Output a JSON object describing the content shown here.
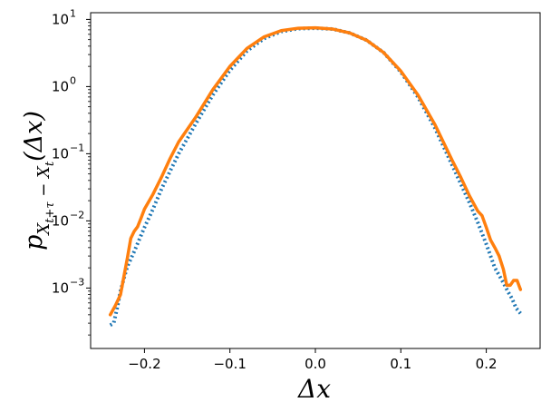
{
  "chart_data": {
    "type": "line",
    "xlabel": "Δx",
    "ylabel": "p_{X_{t+τ} − X_t}(Δx)",
    "yscale": "log",
    "xlim": [
      -0.263,
      0.263
    ],
    "ylim_log10": [
      -3.9,
      1.1
    ],
    "grid": false,
    "x_ticks": [
      {
        "value": -0.2,
        "label": "−0.2"
      },
      {
        "value": -0.1,
        "label": "−0.1"
      },
      {
        "value": 0.0,
        "label": "0.0"
      },
      {
        "value": 0.1,
        "label": "0.1"
      },
      {
        "value": 0.2,
        "label": "0.2"
      }
    ],
    "y_ticks": [
      {
        "value": 0.001,
        "base": "10",
        "exp": "−3"
      },
      {
        "value": 0.01,
        "base": "10",
        "exp": "−2"
      },
      {
        "value": 0.1,
        "base": "10",
        "exp": "−1"
      },
      {
        "value": 1,
        "base": "10",
        "exp": "0"
      },
      {
        "value": 10,
        "base": "10",
        "exp": "1"
      }
    ],
    "series": [
      {
        "color": "#1f77b4",
        "style": "dotted",
        "x": [
          -0.24,
          -0.236,
          -0.232,
          -0.228,
          -0.224,
          -0.22,
          -0.216,
          -0.212,
          -0.2,
          -0.19,
          -0.18,
          -0.17,
          -0.16,
          -0.14,
          -0.12,
          -0.1,
          -0.08,
          -0.06,
          -0.04,
          -0.02,
          0.0,
          0.02,
          0.04,
          0.06,
          0.08,
          0.1,
          0.12,
          0.14,
          0.16,
          0.17,
          0.18,
          0.19,
          0.2,
          0.21,
          0.22,
          0.225,
          0.23,
          0.235,
          0.24
        ],
        "y": [
          0.00028,
          0.0003,
          0.0005,
          0.0009,
          0.0014,
          0.0021,
          0.0027,
          0.0035,
          0.008,
          0.015,
          0.03,
          0.055,
          0.1,
          0.28,
          0.75,
          1.75,
          3.4,
          5.2,
          6.6,
          7.3,
          7.4,
          7.2,
          6.3,
          4.9,
          3.2,
          1.65,
          0.7,
          0.24,
          0.068,
          0.036,
          0.019,
          0.0095,
          0.0045,
          0.002,
          0.0012,
          0.0009,
          0.0007,
          0.0005,
          0.00042
        ]
      },
      {
        "color": "#ff7f0e",
        "style": "solid",
        "x": [
          -0.24,
          -0.234,
          -0.228,
          -0.224,
          -0.22,
          -0.216,
          -0.212,
          -0.208,
          -0.204,
          -0.2,
          -0.19,
          -0.18,
          -0.17,
          -0.16,
          -0.14,
          -0.12,
          -0.1,
          -0.08,
          -0.06,
          -0.04,
          -0.02,
          0.0,
          0.02,
          0.04,
          0.06,
          0.08,
          0.1,
          0.12,
          0.14,
          0.16,
          0.17,
          0.18,
          0.19,
          0.195,
          0.2,
          0.205,
          0.21,
          0.215,
          0.22,
          0.224,
          0.228,
          0.232,
          0.236,
          0.24
        ],
        "y": [
          0.0004,
          0.00055,
          0.0008,
          0.0015,
          0.0028,
          0.0055,
          0.007,
          0.0082,
          0.011,
          0.015,
          0.025,
          0.045,
          0.085,
          0.15,
          0.35,
          0.9,
          2.0,
          3.7,
          5.5,
          6.8,
          7.4,
          7.5,
          7.2,
          6.3,
          4.9,
          3.2,
          1.7,
          0.75,
          0.27,
          0.08,
          0.045,
          0.024,
          0.014,
          0.012,
          0.008,
          0.0052,
          0.004,
          0.003,
          0.0019,
          0.0011,
          0.0011,
          0.0013,
          0.0013,
          0.00095
        ]
      }
    ]
  }
}
